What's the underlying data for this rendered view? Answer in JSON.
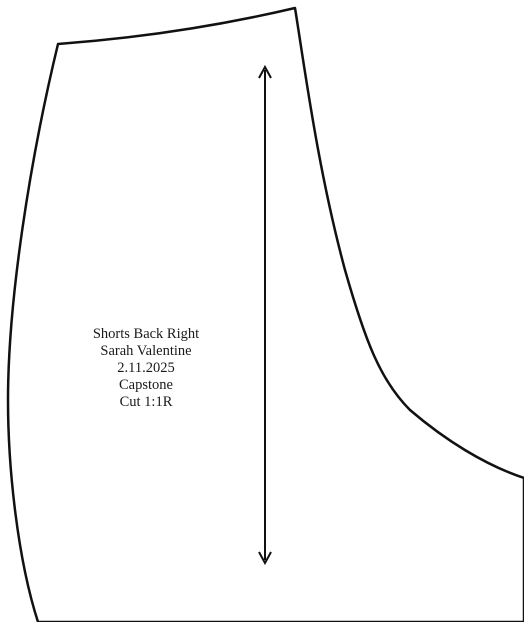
{
  "piece": {
    "title": "Shorts Back Right",
    "designer": "Sarah Valentine",
    "date": "2.11.2025",
    "project": "Capstone",
    "cut": "Cut 1:1R"
  },
  "colors": {
    "outline": "#111111",
    "grainline": "#111111",
    "background": "#ffffff"
  }
}
